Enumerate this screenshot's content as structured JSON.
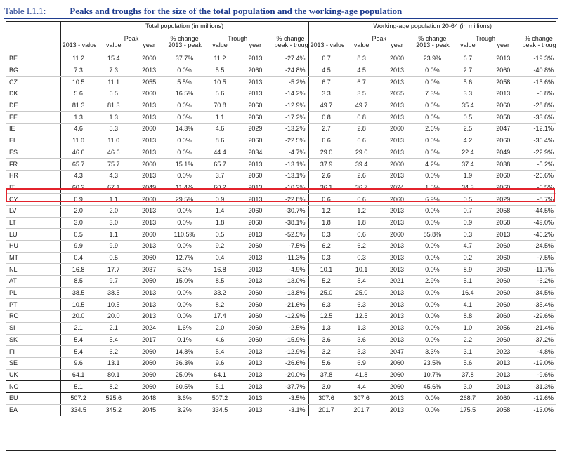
{
  "caption": {
    "number": "Table I.1.1:",
    "title": "Peaks and troughs for the size of the total population and the working-age population"
  },
  "groups": {
    "total": "Total population (in millions)",
    "working": "Working-age population 20-64 (in millions)"
  },
  "subgroups": {
    "peak": "Peak",
    "trough": "Trough",
    "pct1": "% change",
    "pct2": "% change"
  },
  "columns": [
    "2013 - value",
    "value",
    "year",
    "2013 - peak",
    "value",
    "year",
    "peak - trough"
  ],
  "highlight_color": "#e3232c",
  "rows": [
    [
      "BE",
      "11.2",
      "15.4",
      "2060",
      "37.7%",
      "11.2",
      "2013",
      "-27.4%",
      "6.7",
      "8.3",
      "2060",
      "23.9%",
      "6.7",
      "2013",
      "-19.3%"
    ],
    [
      "BG",
      "7.3",
      "7.3",
      "2013",
      "0.0%",
      "5.5",
      "2060",
      "-24.8%",
      "4.5",
      "4.5",
      "2013",
      "0.0%",
      "2.7",
      "2060",
      "-40.8%"
    ],
    [
      "CZ",
      "10.5",
      "11.1",
      "2055",
      "5.5%",
      "10.5",
      "2013",
      "-5.2%",
      "6.7",
      "6.7",
      "2013",
      "0.0%",
      "5.6",
      "2058",
      "-15.6%"
    ],
    [
      "DK",
      "5.6",
      "6.5",
      "2060",
      "16.5%",
      "5.6",
      "2013",
      "-14.2%",
      "3.3",
      "3.5",
      "2055",
      "7.3%",
      "3.3",
      "2013",
      "-6.8%"
    ],
    [
      "DE",
      "81.3",
      "81.3",
      "2013",
      "0.0%",
      "70.8",
      "2060",
      "-12.9%",
      "49.7",
      "49.7",
      "2013",
      "0.0%",
      "35.4",
      "2060",
      "-28.8%"
    ],
    [
      "EE",
      "1.3",
      "1.3",
      "2013",
      "0.0%",
      "1.1",
      "2060",
      "-17.2%",
      "0.8",
      "0.8",
      "2013",
      "0.0%",
      "0.5",
      "2058",
      "-33.6%"
    ],
    [
      "IE",
      "4.6",
      "5.3",
      "2060",
      "14.3%",
      "4.6",
      "2029",
      "-13.2%",
      "2.7",
      "2.8",
      "2060",
      "2.6%",
      "2.5",
      "2047",
      "-12.1%"
    ],
    [
      "EL",
      "11.0",
      "11.0",
      "2013",
      "0.0%",
      "8.6",
      "2060",
      "-22.5%",
      "6.6",
      "6.6",
      "2013",
      "0.0%",
      "4.2",
      "2060",
      "-36.4%"
    ],
    [
      "ES",
      "46.6",
      "46.6",
      "2013",
      "0.0%",
      "44.4",
      "2034",
      "-4.7%",
      "29.0",
      "29.0",
      "2013",
      "0.0%",
      "22.4",
      "2049",
      "-22.9%"
    ],
    [
      "FR",
      "65.7",
      "75.7",
      "2060",
      "15.1%",
      "65.7",
      "2013",
      "-13.1%",
      "37.9",
      "39.4",
      "2060",
      "4.2%",
      "37.4",
      "2038",
      "-5.2%"
    ],
    [
      "HR",
      "4.3",
      "4.3",
      "2013",
      "0.0%",
      "3.7",
      "2060",
      "-13.1%",
      "2.6",
      "2.6",
      "2013",
      "0.0%",
      "1.9",
      "2060",
      "-26.6%"
    ],
    [
      "IT",
      "60.2",
      "67.1",
      "2049",
      "11.4%",
      "60.2",
      "2013",
      "-10.2%",
      "36.1",
      "36.7",
      "2024",
      "1.5%",
      "34.3",
      "2060",
      "-6.5%"
    ],
    [
      "CY",
      "0.9",
      "1.1",
      "2060",
      "29.5%",
      "0.9",
      "2013",
      "-22.8%",
      "0.6",
      "0.6",
      "2060",
      "6.9%",
      "0.5",
      "2029",
      "-8.7%"
    ],
    [
      "LV",
      "2.0",
      "2.0",
      "2013",
      "0.0%",
      "1.4",
      "2060",
      "-30.7%",
      "1.2",
      "1.2",
      "2013",
      "0.0%",
      "0.7",
      "2058",
      "-44.5%"
    ],
    [
      "LT",
      "3.0",
      "3.0",
      "2013",
      "0.0%",
      "1.8",
      "2060",
      "-38.1%",
      "1.8",
      "1.8",
      "2013",
      "0.0%",
      "0.9",
      "2058",
      "-49.0%"
    ],
    [
      "LU",
      "0.5",
      "1.1",
      "2060",
      "110.5%",
      "0.5",
      "2013",
      "-52.5%",
      "0.3",
      "0.6",
      "2060",
      "85.8%",
      "0.3",
      "2013",
      "-46.2%"
    ],
    [
      "HU",
      "9.9",
      "9.9",
      "2013",
      "0.0%",
      "9.2",
      "2060",
      "-7.5%",
      "6.2",
      "6.2",
      "2013",
      "0.0%",
      "4.7",
      "2060",
      "-24.5%"
    ],
    [
      "MT",
      "0.4",
      "0.5",
      "2060",
      "12.7%",
      "0.4",
      "2013",
      "-11.3%",
      "0.3",
      "0.3",
      "2013",
      "0.0%",
      "0.2",
      "2060",
      "-7.5%"
    ],
    [
      "NL",
      "16.8",
      "17.7",
      "2037",
      "5.2%",
      "16.8",
      "2013",
      "-4.9%",
      "10.1",
      "10.1",
      "2013",
      "0.0%",
      "8.9",
      "2060",
      "-11.7%"
    ],
    [
      "AT",
      "8.5",
      "9.7",
      "2050",
      "15.0%",
      "8.5",
      "2013",
      "-13.0%",
      "5.2",
      "5.4",
      "2021",
      "2.9%",
      "5.1",
      "2060",
      "-6.2%"
    ],
    [
      "PL",
      "38.5",
      "38.5",
      "2013",
      "0.0%",
      "33.2",
      "2060",
      "-13.8%",
      "25.0",
      "25.0",
      "2013",
      "0.0%",
      "16.4",
      "2060",
      "-34.5%"
    ],
    [
      "PT",
      "10.5",
      "10.5",
      "2013",
      "0.0%",
      "8.2",
      "2060",
      "-21.6%",
      "6.3",
      "6.3",
      "2013",
      "0.0%",
      "4.1",
      "2060",
      "-35.4%"
    ],
    [
      "RO",
      "20.0",
      "20.0",
      "2013",
      "0.0%",
      "17.4",
      "2060",
      "-12.9%",
      "12.5",
      "12.5",
      "2013",
      "0.0%",
      "8.8",
      "2060",
      "-29.6%"
    ],
    [
      "SI",
      "2.1",
      "2.1",
      "2024",
      "1.6%",
      "2.0",
      "2060",
      "-2.5%",
      "1.3",
      "1.3",
      "2013",
      "0.0%",
      "1.0",
      "2056",
      "-21.4%"
    ],
    [
      "SK",
      "5.4",
      "5.4",
      "2017",
      "0.1%",
      "4.6",
      "2060",
      "-15.9%",
      "3.6",
      "3.6",
      "2013",
      "0.0%",
      "2.2",
      "2060",
      "-37.2%"
    ],
    [
      "FI",
      "5.4",
      "6.2",
      "2060",
      "14.8%",
      "5.4",
      "2013",
      "-12.9%",
      "3.2",
      "3.3",
      "2047",
      "3.3%",
      "3.1",
      "2023",
      "-4.8%"
    ],
    [
      "SE",
      "9.6",
      "13.1",
      "2060",
      "36.3%",
      "9.6",
      "2013",
      "-26.6%",
      "5.6",
      "6.9",
      "2060",
      "23.5%",
      "5.6",
      "2013",
      "-19.0%"
    ],
    [
      "UK",
      "64.1",
      "80.1",
      "2060",
      "25.0%",
      "64.1",
      "2013",
      "-20.0%",
      "37.8",
      "41.8",
      "2060",
      "10.7%",
      "37.8",
      "2013",
      "-9.6%"
    ],
    [
      "NO",
      "5.1",
      "8.2",
      "2060",
      "60.5%",
      "5.1",
      "2013",
      "-37.7%",
      "3.0",
      "4.4",
      "2060",
      "45.6%",
      "3.0",
      "2013",
      "-31.3%"
    ],
    [
      "EU",
      "507.2",
      "525.6",
      "2048",
      "3.6%",
      "507.2",
      "2013",
      "-3.5%",
      "307.6",
      "307.6",
      "2013",
      "0.0%",
      "268.7",
      "2060",
      "-12.6%"
    ],
    [
      "EA",
      "334.5",
      "345.2",
      "2045",
      "3.2%",
      "334.5",
      "2013",
      "-3.1%",
      "201.7",
      "201.7",
      "2013",
      "0.0%",
      "175.5",
      "2058",
      "-13.0%"
    ]
  ]
}
